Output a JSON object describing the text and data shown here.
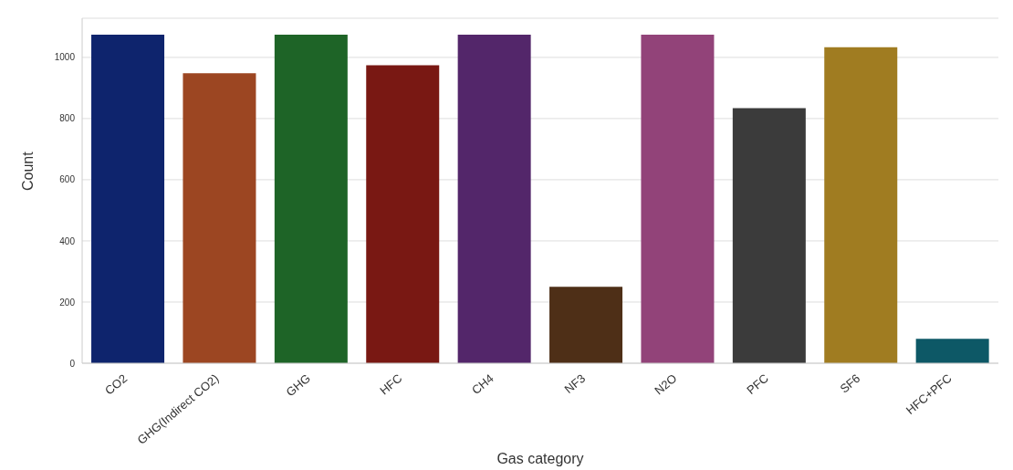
{
  "chart_data": {
    "type": "bar",
    "xlabel": "Gas category",
    "ylabel": "Count",
    "categories": [
      "CO2",
      "GHG(Indirect CO2)",
      "GHG",
      "HFC",
      "CH4",
      "NF3",
      "N2O",
      "PFC",
      "SF6",
      "HFC+PFC"
    ],
    "values": [
      1074,
      948,
      1074,
      974,
      1074,
      250,
      1074,
      834,
      1033,
      80
    ],
    "colors": [
      "#0e246d",
      "#9c4622",
      "#1e6427",
      "#791813",
      "#53266a",
      "#4e2f17",
      "#924379",
      "#3b3b3b",
      "#a07c21",
      "#0d5866"
    ],
    "ylim": [
      0,
      1128
    ],
    "yticks": [
      0,
      200,
      400,
      600,
      800,
      1000
    ],
    "grid": "y"
  }
}
